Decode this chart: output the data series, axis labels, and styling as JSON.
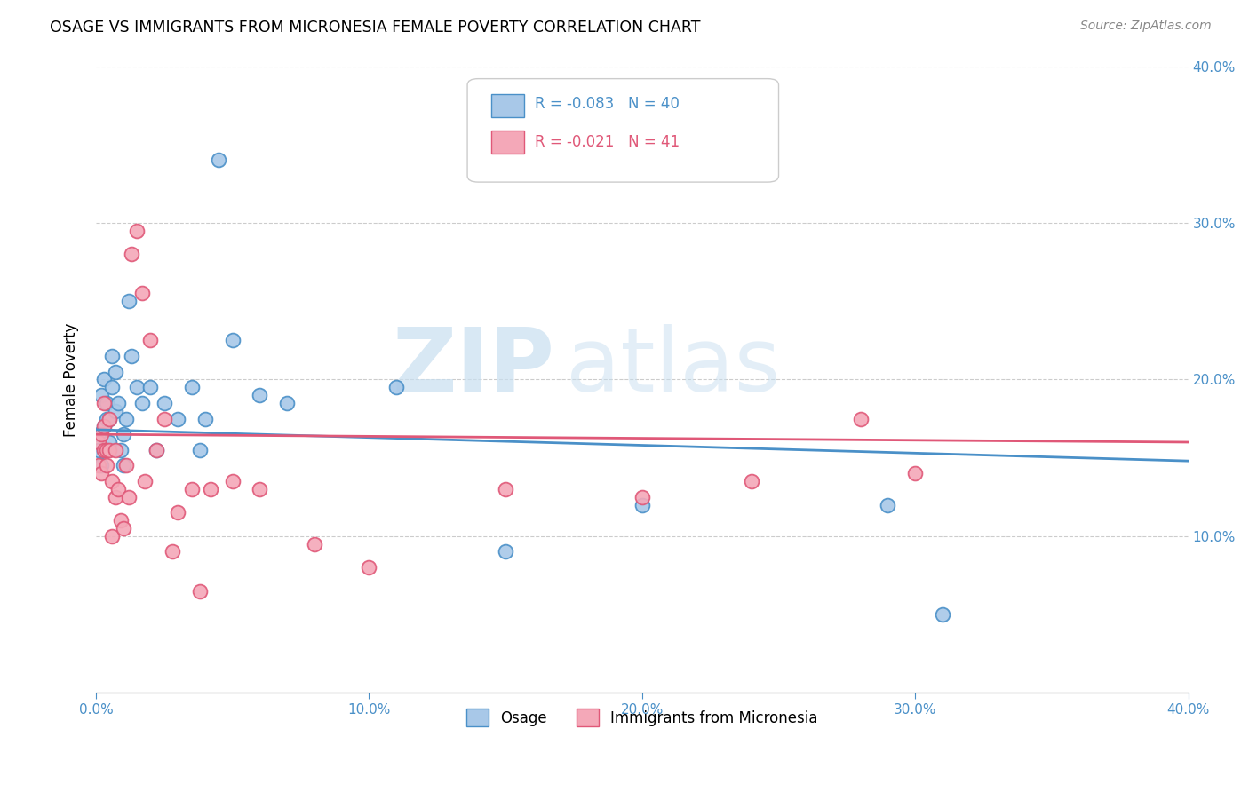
{
  "title": "OSAGE VS IMMIGRANTS FROM MICRONESIA FEMALE POVERTY CORRELATION CHART",
  "source": "Source: ZipAtlas.com",
  "ylabel": "Female Poverty",
  "legend_label1": "Osage",
  "legend_label2": "Immigrants from Micronesia",
  "r1": "-0.083",
  "n1": "40",
  "r2": "-0.021",
  "n2": "41",
  "color1": "#a8c8e8",
  "color2": "#f4a8b8",
  "color1_edge": "#4a90c8",
  "color2_edge": "#e05878",
  "xlim": [
    0.0,
    0.4
  ],
  "ylim": [
    0.0,
    0.4
  ],
  "yticks": [
    0.1,
    0.2,
    0.3,
    0.4
  ],
  "ytick_labels": [
    "10.0%",
    "20.0%",
    "30.0%",
    "40.0%"
  ],
  "xticks": [
    0.0,
    0.1,
    0.2,
    0.3,
    0.4
  ],
  "xtick_labels": [
    "0.0%",
    "10.0%",
    "20.0%",
    "30.0%",
    "40.0%"
  ],
  "watermark_zip": "ZIP",
  "watermark_atlas": "atlas",
  "osage_x": [
    0.001,
    0.001,
    0.002,
    0.002,
    0.003,
    0.003,
    0.003,
    0.004,
    0.004,
    0.005,
    0.005,
    0.006,
    0.006,
    0.007,
    0.007,
    0.008,
    0.009,
    0.01,
    0.01,
    0.011,
    0.012,
    0.013,
    0.015,
    0.017,
    0.02,
    0.022,
    0.025,
    0.03,
    0.035,
    0.038,
    0.04,
    0.045,
    0.05,
    0.06,
    0.07,
    0.11,
    0.15,
    0.2,
    0.29,
    0.31
  ],
  "osage_y": [
    0.155,
    0.165,
    0.19,
    0.145,
    0.2,
    0.17,
    0.155,
    0.185,
    0.175,
    0.16,
    0.175,
    0.195,
    0.215,
    0.205,
    0.18,
    0.185,
    0.155,
    0.145,
    0.165,
    0.175,
    0.25,
    0.215,
    0.195,
    0.185,
    0.195,
    0.155,
    0.185,
    0.175,
    0.195,
    0.155,
    0.175,
    0.34,
    0.225,
    0.19,
    0.185,
    0.195,
    0.09,
    0.12,
    0.12,
    0.05
  ],
  "micronesia_x": [
    0.001,
    0.001,
    0.002,
    0.002,
    0.003,
    0.003,
    0.003,
    0.004,
    0.004,
    0.005,
    0.005,
    0.006,
    0.006,
    0.007,
    0.007,
    0.008,
    0.009,
    0.01,
    0.011,
    0.012,
    0.013,
    0.015,
    0.017,
    0.018,
    0.02,
    0.022,
    0.025,
    0.028,
    0.03,
    0.035,
    0.038,
    0.042,
    0.05,
    0.06,
    0.08,
    0.1,
    0.15,
    0.2,
    0.24,
    0.28,
    0.3
  ],
  "micronesia_y": [
    0.16,
    0.145,
    0.165,
    0.14,
    0.155,
    0.17,
    0.185,
    0.145,
    0.155,
    0.175,
    0.155,
    0.135,
    0.1,
    0.155,
    0.125,
    0.13,
    0.11,
    0.105,
    0.145,
    0.125,
    0.28,
    0.295,
    0.255,
    0.135,
    0.225,
    0.155,
    0.175,
    0.09,
    0.115,
    0.13,
    0.065,
    0.13,
    0.135,
    0.13,
    0.095,
    0.08,
    0.13,
    0.125,
    0.135,
    0.175,
    0.14
  ]
}
